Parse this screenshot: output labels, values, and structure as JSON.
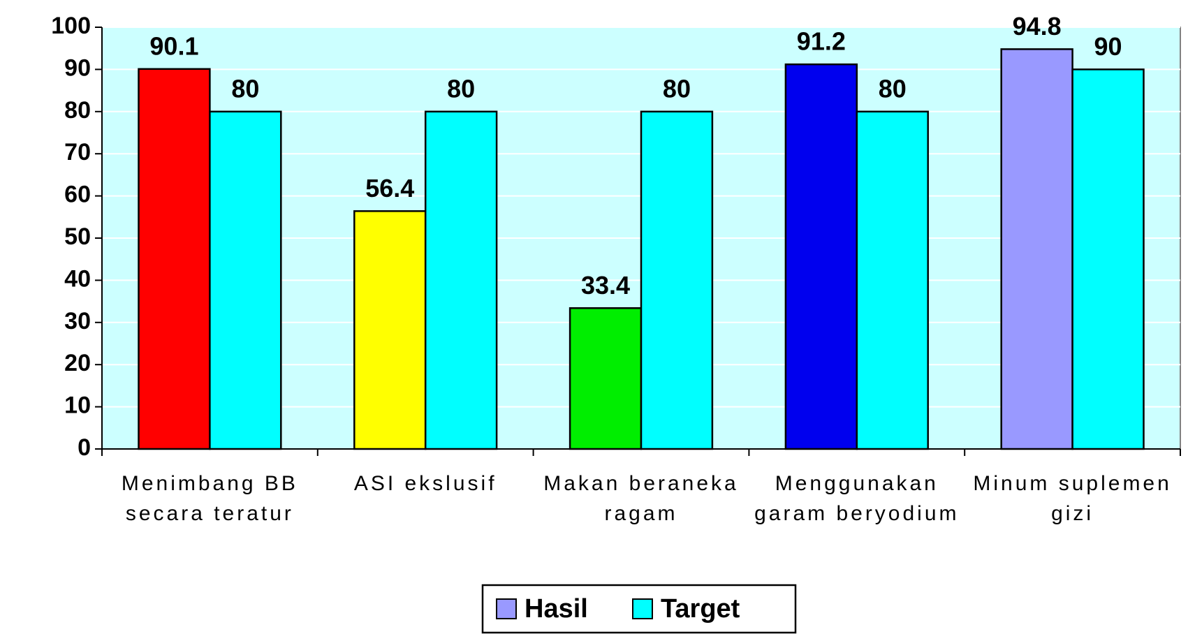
{
  "chart_data": {
    "type": "bar",
    "categories": [
      "Menimbang BB secara teratur",
      "ASI ekslusif",
      "Makan beraneka ragam",
      "Menggunakan garam beryodium",
      "Minum suplemen gizi"
    ],
    "series": [
      {
        "name": "Hasil",
        "color": "#9999ff",
        "colors": [
          "#ff0000",
          "#ffff00",
          "#00ee00",
          "#0000ee",
          "#9999ff"
        ],
        "values": [
          90.1,
          56.4,
          33.4,
          91.2,
          94.8
        ]
      },
      {
        "name": "Target",
        "color": "#00ffff",
        "values": [
          80,
          80,
          80,
          80,
          90
        ]
      }
    ],
    "ylim": [
      0,
      100
    ],
    "yticks": [
      0,
      10,
      20,
      30,
      40,
      50,
      60,
      70,
      80,
      90,
      100
    ],
    "grid": true,
    "legend": "bottom"
  }
}
